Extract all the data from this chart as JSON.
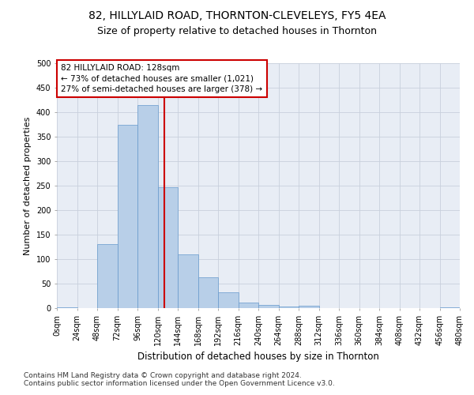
{
  "title1": "82, HILLYLAID ROAD, THORNTON-CLEVELEYS, FY5 4EA",
  "title2": "Size of property relative to detached houses in Thornton",
  "xlabel": "Distribution of detached houses by size in Thornton",
  "ylabel": "Number of detached properties",
  "bar_values": [
    2,
    0,
    130,
    375,
    415,
    246,
    110,
    63,
    33,
    12,
    7,
    4,
    5,
    0,
    0,
    0,
    0,
    0,
    0,
    2
  ],
  "bin_edges": [
    0,
    24,
    48,
    72,
    96,
    120,
    144,
    168,
    192,
    216,
    240,
    264,
    288,
    312,
    336,
    360,
    384,
    408,
    432,
    456,
    480
  ],
  "tick_labels": [
    "0sqm",
    "24sqm",
    "48sqm",
    "72sqm",
    "96sqm",
    "120sqm",
    "144sqm",
    "168sqm",
    "192sqm",
    "216sqm",
    "240sqm",
    "264sqm",
    "288sqm",
    "312sqm",
    "336sqm",
    "360sqm",
    "384sqm",
    "408sqm",
    "432sqm",
    "456sqm",
    "480sqm"
  ],
  "bar_color": "#b8cfe8",
  "bar_edge_color": "#6699cc",
  "vline_x": 128,
  "vline_color": "#cc0000",
  "annotation_text": "82 HILLYLAID ROAD: 128sqm\n← 73% of detached houses are smaller (1,021)\n27% of semi-detached houses are larger (378) →",
  "annotation_box_color": "#ffffff",
  "annotation_box_edge": "#cc0000",
  "ylim": [
    0,
    500
  ],
  "yticks": [
    0,
    50,
    100,
    150,
    200,
    250,
    300,
    350,
    400,
    450,
    500
  ],
  "footer1": "Contains HM Land Registry data © Crown copyright and database right 2024.",
  "footer2": "Contains public sector information licensed under the Open Government Licence v3.0.",
  "bg_color": "#ffffff",
  "plot_bg_color": "#e8edf5",
  "grid_color": "#c8d0dc",
  "title1_fontsize": 10,
  "title2_fontsize": 9,
  "xlabel_fontsize": 8.5,
  "ylabel_fontsize": 8,
  "tick_fontsize": 7,
  "annot_fontsize": 7.5,
  "footer_fontsize": 6.5
}
